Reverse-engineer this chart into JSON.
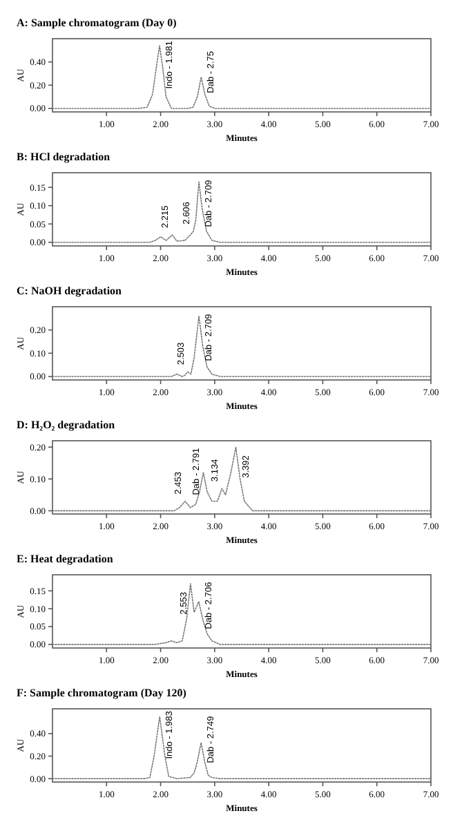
{
  "chart_data": [
    {
      "type": "line",
      "title": "A: Sample chromatogram (Day 0)",
      "xlabel": "Minutes",
      "ylabel": "AU",
      "line_style": "dotted",
      "xlim": [
        0,
        7
      ],
      "ylim": [
        -0.03,
        0.6
      ],
      "xticks": [
        {
          "value": 1,
          "label": "1.00"
        },
        {
          "value": 2,
          "label": "2.00"
        },
        {
          "value": 3,
          "label": "3.00"
        },
        {
          "value": 4,
          "label": "4.00"
        },
        {
          "value": 5,
          "label": "5.00"
        },
        {
          "value": 6,
          "label": "6.00"
        },
        {
          "value": 7,
          "label": "7.00"
        }
      ],
      "yticks": [
        {
          "value": 0,
          "label": "0.00"
        },
        {
          "value": 0.2,
          "label": "0.20"
        },
        {
          "value": 0.4,
          "label": "0.40"
        }
      ],
      "series": [
        {
          "color": "#777777",
          "x": [
            0,
            1.6,
            1.75,
            1.85,
            1.92,
            1.981,
            2.04,
            2.1,
            2.2,
            2.5,
            2.6,
            2.68,
            2.75,
            2.82,
            2.9,
            3.0,
            3.5,
            5,
            7
          ],
          "values": [
            0,
            0,
            0.01,
            0.12,
            0.35,
            0.54,
            0.35,
            0.1,
            0,
            0,
            0.01,
            0.1,
            0.27,
            0.12,
            0.02,
            0,
            0,
            0,
            0
          ]
        }
      ],
      "annotations": [
        {
          "text": "Indo - 1.981",
          "x": 1.981,
          "y": 0.54
        },
        {
          "text": "Dab - 2.75",
          "x": 2.75,
          "y": 0.27
        }
      ]
    },
    {
      "type": "line",
      "title": "B: HCl degradation",
      "xlabel": "Minutes",
      "ylabel": "AU",
      "line_style": "dotted",
      "xlim": [
        0,
        7
      ],
      "ylim": [
        -0.01,
        0.19
      ],
      "xticks": [
        {
          "value": 1,
          "label": "1.00"
        },
        {
          "value": 2,
          "label": "2.00"
        },
        {
          "value": 3,
          "label": "3.00"
        },
        {
          "value": 4,
          "label": "4.00"
        },
        {
          "value": 5,
          "label": "5.00"
        },
        {
          "value": 6,
          "label": "6.00"
        },
        {
          "value": 7,
          "label": "7.00"
        }
      ],
      "yticks": [
        {
          "value": 0,
          "label": "0.00"
        },
        {
          "value": 0.05,
          "label": "0.05"
        },
        {
          "value": 0.1,
          "label": "0.10"
        },
        {
          "value": 0.15,
          "label": "0.15"
        }
      ],
      "series": [
        {
          "color": "#777777",
          "x": [
            0,
            1.8,
            1.9,
            2.0,
            2.1,
            2.215,
            2.3,
            2.45,
            2.55,
            2.606,
            2.65,
            2.709,
            2.77,
            2.85,
            2.95,
            3.1,
            7
          ],
          "values": [
            0,
            0,
            0.005,
            0.015,
            0.005,
            0.02,
            0.003,
            0.005,
            0.02,
            0.03,
            0.06,
            0.165,
            0.09,
            0.03,
            0.005,
            0,
            0
          ]
        }
      ],
      "annotations": [
        {
          "text": "2.215",
          "x": 2.215,
          "y": 0.02
        },
        {
          "text": "2.606",
          "x": 2.606,
          "y": 0.03
        },
        {
          "text": "Dab - 2.709",
          "x": 2.709,
          "y": 0.165
        }
      ]
    },
    {
      "type": "line",
      "title": "C: NaOH degradation",
      "xlabel": "Minutes",
      "ylabel": "AU",
      "line_style": "dotted",
      "xlim": [
        0,
        7
      ],
      "ylim": [
        -0.015,
        0.3
      ],
      "xticks": [
        {
          "value": 1,
          "label": "1.00"
        },
        {
          "value": 2,
          "label": "2.00"
        },
        {
          "value": 3,
          "label": "3.00"
        },
        {
          "value": 4,
          "label": "4.00"
        },
        {
          "value": 5,
          "label": "5.00"
        },
        {
          "value": 6,
          "label": "6.00"
        },
        {
          "value": 7,
          "label": "7.00"
        }
      ],
      "yticks": [
        {
          "value": 0,
          "label": "0.00"
        },
        {
          "value": 0.1,
          "label": "0.10"
        },
        {
          "value": 0.2,
          "label": "0.20"
        }
      ],
      "series": [
        {
          "color": "#777777",
          "x": [
            0,
            2.2,
            2.3,
            2.4,
            2.45,
            2.503,
            2.56,
            2.62,
            2.709,
            2.78,
            2.86,
            2.95,
            3.1,
            7
          ],
          "values": [
            0,
            0,
            0.01,
            0,
            0.005,
            0.02,
            0.01,
            0.08,
            0.26,
            0.13,
            0.04,
            0.01,
            0,
            0
          ]
        }
      ],
      "annotations": [
        {
          "text": "2.503",
          "x": 2.503,
          "y": 0.02
        },
        {
          "text": "Dab - 2.709",
          "x": 2.709,
          "y": 0.26
        }
      ]
    },
    {
      "type": "line",
      "title": "D: H₂O₂ degradation",
      "xlabel": "Minutes",
      "ylabel": "AU",
      "line_style": "dotted",
      "xlim": [
        0,
        7
      ],
      "ylim": [
        -0.01,
        0.22
      ],
      "xticks": [
        {
          "value": 1,
          "label": "1.00"
        },
        {
          "value": 2,
          "label": "2.00"
        },
        {
          "value": 3,
          "label": "3.00"
        },
        {
          "value": 4,
          "label": "4.00"
        },
        {
          "value": 5,
          "label": "5.00"
        },
        {
          "value": 6,
          "label": "6.00"
        },
        {
          "value": 7,
          "label": "7.00"
        }
      ],
      "yticks": [
        {
          "value": 0,
          "label": "0.00"
        },
        {
          "value": 0.1,
          "label": "0.10"
        },
        {
          "value": 0.2,
          "label": "0.20"
        }
      ],
      "series": [
        {
          "color": "#777777",
          "x": [
            0,
            2.25,
            2.35,
            2.453,
            2.55,
            2.65,
            2.72,
            2.791,
            2.86,
            2.95,
            3.05,
            3.134,
            3.2,
            3.3,
            3.392,
            3.47,
            3.55,
            3.7,
            7
          ],
          "values": [
            0,
            0,
            0.01,
            0.03,
            0.01,
            0.02,
            0.06,
            0.12,
            0.06,
            0.03,
            0.03,
            0.07,
            0.05,
            0.12,
            0.2,
            0.1,
            0.03,
            0,
            0
          ]
        }
      ],
      "annotations": [
        {
          "text": "2.453",
          "x": 2.453,
          "y": 0.03
        },
        {
          "text": "Dab - 2.791",
          "x": 2.791,
          "y": 0.12
        },
        {
          "text": "3.134",
          "x": 3.134,
          "y": 0.07
        },
        {
          "text": "3.392",
          "x": 3.392,
          "y": 0.2
        }
      ]
    },
    {
      "type": "line",
      "title": "E: Heat degradation",
      "xlabel": "Minutes",
      "ylabel": "AU",
      "line_style": "dotted",
      "xlim": [
        0,
        7
      ],
      "ylim": [
        -0.01,
        0.195
      ],
      "xticks": [
        {
          "value": 1,
          "label": "1.00"
        },
        {
          "value": 2,
          "label": "2.00"
        },
        {
          "value": 3,
          "label": "3.00"
        },
        {
          "value": 4,
          "label": "4.00"
        },
        {
          "value": 5,
          "label": "5.00"
        },
        {
          "value": 6,
          "label": "6.00"
        },
        {
          "value": 7,
          "label": "7.00"
        }
      ],
      "yticks": [
        {
          "value": 0,
          "label": "0.00"
        },
        {
          "value": 0.05,
          "label": "0.05"
        },
        {
          "value": 0.1,
          "label": "0.10"
        },
        {
          "value": 0.15,
          "label": "0.15"
        }
      ],
      "series": [
        {
          "color": "#777777",
          "x": [
            0,
            1.9,
            2.1,
            2.2,
            2.3,
            2.4,
            2.48,
            2.553,
            2.62,
            2.706,
            2.78,
            2.86,
            2.95,
            3.1,
            7
          ],
          "values": [
            0,
            0,
            0.005,
            0.01,
            0.005,
            0.01,
            0.07,
            0.17,
            0.09,
            0.12,
            0.07,
            0.03,
            0.01,
            0,
            0
          ]
        }
      ],
      "annotations": [
        {
          "text": "2.553",
          "x": 2.553,
          "y": 0.17
        },
        {
          "text": "Dab - 2.706",
          "x": 2.706,
          "y": 0.12
        }
      ]
    },
    {
      "type": "line",
      "title": "F: Sample chromatogram (Day 120)",
      "xlabel": "Minutes",
      "ylabel": "AU",
      "line_style": "dotted",
      "xlim": [
        0,
        7
      ],
      "ylim": [
        -0.03,
        0.62
      ],
      "xticks": [
        {
          "value": 1,
          "label": "1.00"
        },
        {
          "value": 2,
          "label": "2.00"
        },
        {
          "value": 3,
          "label": "3.00"
        },
        {
          "value": 4,
          "label": "4.00"
        },
        {
          "value": 5,
          "label": "5.00"
        },
        {
          "value": 6,
          "label": "6.00"
        },
        {
          "value": 7,
          "label": "7.00"
        }
      ],
      "yticks": [
        {
          "value": 0,
          "label": "0.00"
        },
        {
          "value": 0.2,
          "label": "0.20"
        },
        {
          "value": 0.4,
          "label": "0.40"
        }
      ],
      "series": [
        {
          "color": "#777777",
          "x": [
            0,
            1.7,
            1.8,
            1.88,
            1.983,
            2.08,
            2.15,
            2.3,
            2.55,
            2.62,
            2.68,
            2.749,
            2.82,
            2.88,
            2.95,
            3.1,
            7
          ],
          "values": [
            0,
            0,
            0.01,
            0.2,
            0.55,
            0.2,
            0.02,
            0,
            0.01,
            0.05,
            0.15,
            0.32,
            0.14,
            0.03,
            0.01,
            0,
            0
          ]
        }
      ],
      "annotations": [
        {
          "text": "Indo - 1.983",
          "x": 1.983,
          "y": 0.55
        },
        {
          "text": "Dab - 2.749",
          "x": 2.749,
          "y": 0.32
        }
      ]
    }
  ]
}
